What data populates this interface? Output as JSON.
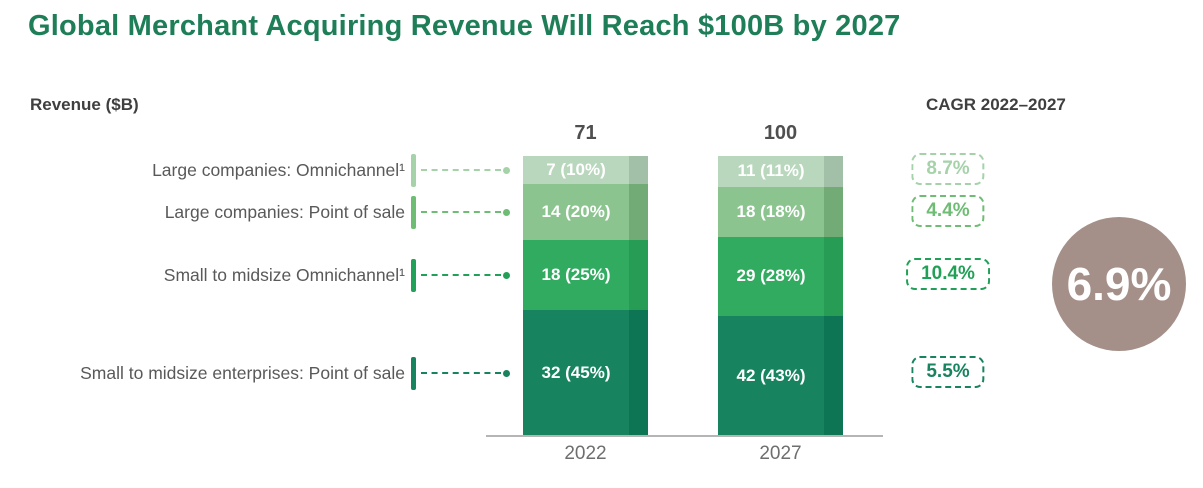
{
  "title": "Global Merchant Acquiring Revenue Will Reach $100B by 2027",
  "revenue_axis_label": "Revenue ($B)",
  "cagr_column_header": "CAGR 2022–2027",
  "chart_data": {
    "type": "bar",
    "subtype": "100-percent-stacked-columns-with-totals",
    "unit": "$B",
    "categories": [
      "2022",
      "2027"
    ],
    "totals": [
      "71",
      "100"
    ],
    "series": [
      {
        "name": "Large companies: Omnichannel¹",
        "values": [
          7,
          11
        ],
        "shares_pct": [
          10,
          11
        ],
        "segment_labels": [
          "7 (10%)",
          "11 (11%)"
        ],
        "cagr": "8.7%",
        "color": "#b9d7bd",
        "edge_color": "#a2c0a7",
        "accent_color": "#a6d2aa"
      },
      {
        "name": "Large companies: Point of sale",
        "values": [
          14,
          18
        ],
        "shares_pct": [
          20,
          18
        ],
        "segment_labels": [
          "14 (20%)",
          "18 (18%)"
        ],
        "cagr": "4.4%",
        "color": "#8cc48f",
        "edge_color": "#72ab76",
        "accent_color": "#6fbd74"
      },
      {
        "name": "Small to midsize Omnichannel¹",
        "values": [
          18,
          29
        ],
        "shares_pct": [
          25,
          28
        ],
        "segment_labels": [
          "18 (25%)",
          "29 (28%)"
        ],
        "cagr": "10.4%",
        "color": "#31ab60",
        "edge_color": "#279c55",
        "accent_color": "#21a158"
      },
      {
        "name": "Small to midsize enterprises: Point of sale",
        "values": [
          32,
          42
        ],
        "shares_pct": [
          45,
          43
        ],
        "segment_labels": [
          "32 (45%)",
          "42 (43%)"
        ],
        "cagr": "5.5%",
        "color": "#17845f",
        "edge_color": "#0e7554",
        "accent_color": "#17835f"
      }
    ],
    "overall_cagr": "6.9%",
    "legend_position": "left row labels with dashed leader lines",
    "grid": false,
    "ylim": [
      0,
      100
    ]
  },
  "colors": {
    "title": "#1e7e58",
    "header_text": "#3f3f3f",
    "row_label": "#595959",
    "total_label": "#4f4f4f",
    "axis_label": "#6e6e6e",
    "axis_line": "#b5b5b5",
    "segment_text": "#ffffff",
    "overall_circle": "#a59089",
    "background": "#ffffff"
  }
}
